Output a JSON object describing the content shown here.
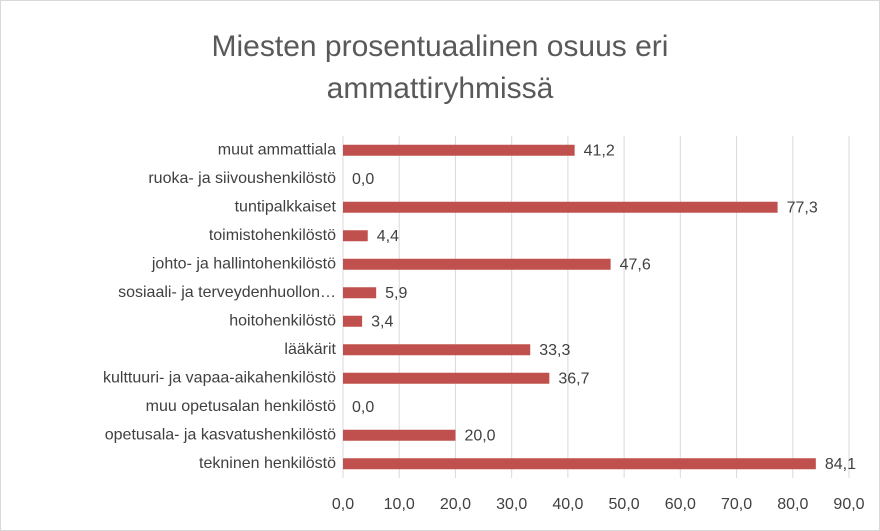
{
  "chart_data": {
    "type": "barh",
    "title": "Miesten prosentuaalinen osuus eri ammattiryhmissä",
    "categories": [
      "muut ammattiala",
      "ruoka- ja siivoushenkilöstö",
      "tuntipalkkaiset",
      "toimistohenkilöstö",
      "johto- ja hallintohenkilöstö",
      "sosiaali- ja terveydenhuollon…",
      "hoitohenkilöstö",
      "lääkärit",
      "kulttuuri- ja vapaa-aikahenkilöstö",
      "muu opetusalan henkilöstö",
      "opetusala- ja kasvatushenkilöstö",
      "tekninen henkilöstö"
    ],
    "values": [
      41.2,
      0.0,
      77.3,
      4.4,
      47.6,
      5.9,
      3.4,
      33.3,
      36.7,
      0.0,
      20.0,
      84.1
    ],
    "value_labels": [
      "41,2",
      "0,0",
      "77,3",
      "4,4",
      "47,6",
      "5,9",
      "3,4",
      "33,3",
      "36,7",
      "0,0",
      "20,0",
      "84,1"
    ],
    "color": "#c0504d",
    "xlim": [
      0,
      90
    ],
    "xticks": [
      {
        "value": 0,
        "label": "0,0"
      },
      {
        "value": 10,
        "label": "10,0"
      },
      {
        "value": 20,
        "label": "20,0"
      },
      {
        "value": 30,
        "label": "30,0"
      },
      {
        "value": 40,
        "label": "40,0"
      },
      {
        "value": 50,
        "label": "50,0"
      },
      {
        "value": 60,
        "label": "60,0"
      },
      {
        "value": 70,
        "label": "70,0"
      },
      {
        "value": 80,
        "label": "80,0"
      },
      {
        "value": 90,
        "label": "90,0"
      }
    ],
    "grid": true
  }
}
